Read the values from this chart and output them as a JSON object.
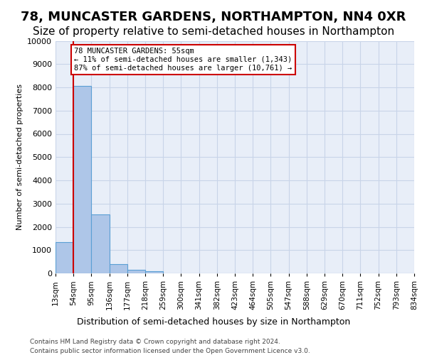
{
  "title": "78, MUNCASTER GARDENS, NORTHAMPTON, NN4 0XR",
  "subtitle": "Size of property relative to semi-detached houses in Northampton",
  "xlabel_bottom": "Distribution of semi-detached houses by size in Northampton",
  "ylabel": "Number of semi-detached properties",
  "footer_line1": "Contains HM Land Registry data © Crown copyright and database right 2024.",
  "footer_line2": "Contains public sector information licensed under the Open Government Licence v3.0.",
  "bin_labels": [
    "13sqm",
    "54sqm",
    "95sqm",
    "136sqm",
    "177sqm",
    "218sqm",
    "259sqm",
    "300sqm",
    "341sqm",
    "382sqm",
    "423sqm",
    "464sqm",
    "505sqm",
    "547sqm",
    "588sqm",
    "629sqm",
    "670sqm",
    "711sqm",
    "752sqm",
    "793sqm",
    "834sqm"
  ],
  "bar_values": [
    1340,
    8050,
    2520,
    390,
    150,
    90,
    0,
    0,
    0,
    0,
    0,
    0,
    0,
    0,
    0,
    0,
    0,
    0,
    0,
    0
  ],
  "bar_color": "#aec6e8",
  "bar_edge_color": "#5a9fd4",
  "property_line_color": "#cc0000",
  "annotation_text_line1": "78 MUNCASTER GARDENS: 55sqm",
  "annotation_text_line2": "← 11% of semi-detached houses are smaller (1,343)",
  "annotation_text_line3": "87% of semi-detached houses are larger (10,761) →",
  "annotation_box_color": "#cc0000",
  "annotation_text_color": "#000000",
  "ylim": [
    0,
    10000
  ],
  "yticks": [
    0,
    1000,
    2000,
    3000,
    4000,
    5000,
    6000,
    7000,
    8000,
    9000,
    10000
  ],
  "background_color": "#ffffff",
  "axes_background_color": "#e8eef8",
  "grid_color": "#c8d4e8",
  "title_fontsize": 13,
  "subtitle_fontsize": 11
}
